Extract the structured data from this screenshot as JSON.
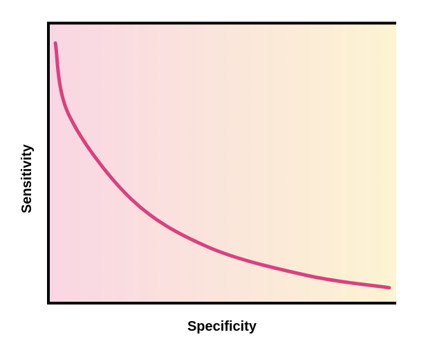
{
  "chart_data": {
    "type": "line",
    "title": "",
    "xlabel": "Specificity",
    "ylabel": "Sensitivity",
    "xlim": [
      0,
      1
    ],
    "ylim": [
      0,
      1
    ],
    "grid": false,
    "legend": "none",
    "x_ticks_shown": false,
    "y_ticks_shown": false,
    "background_gradient": [
      "#f9d6e4",
      "#fcf4d2"
    ],
    "series": [
      {
        "color": "#d9417f",
        "points": [
          [
            0.02,
            0.93
          ],
          [
            0.06,
            0.67
          ],
          [
            0.24,
            0.37
          ],
          [
            0.46,
            0.2
          ],
          [
            0.74,
            0.1
          ],
          [
            0.98,
            0.055
          ]
        ]
      }
    ]
  }
}
